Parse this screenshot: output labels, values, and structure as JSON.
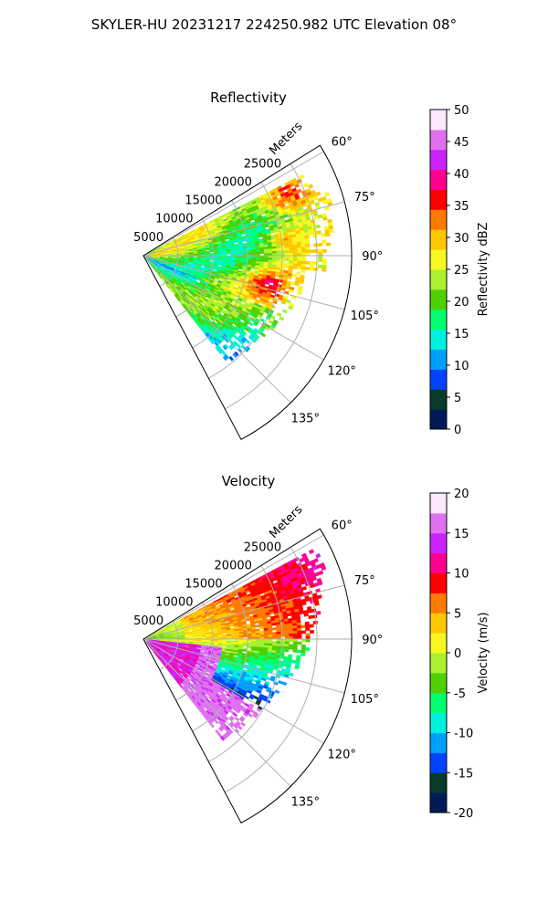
{
  "figure": {
    "title": "SKYLER-HU  20231217  224250.982 UTC Elevation 08°"
  },
  "chart_data": [
    {
      "type": "heatmap",
      "subtype": "polar-sector (PPI)",
      "title": "Reflectivity",
      "range_label": "Meters",
      "range_ticks": [
        5000,
        10000,
        15000,
        20000,
        25000
      ],
      "range_max": 30000,
      "azimuth_ticks": [
        "60°",
        "75°",
        "90°",
        "105°",
        "120°",
        "135°"
      ],
      "azimuth_tick_values": [
        60,
        75,
        90,
        105,
        120,
        135
      ],
      "azimuth_range": [
        58,
        152
      ],
      "grid": true,
      "colorbar": {
        "label": "Reflectivity dBZ",
        "min": 0,
        "max": 50,
        "ticks": [
          0,
          5,
          10,
          15,
          20,
          25,
          30,
          35,
          40,
          45,
          50
        ],
        "colormap": "HomeyerRainbow",
        "stops": [
          "#001a57",
          "#0a3a2a",
          "#0044ff",
          "#00a0ff",
          "#00f0e0",
          "#00ff70",
          "#50d000",
          "#a8f030",
          "#f8f820",
          "#ffc800",
          "#ff7a00",
          "#ff0000",
          "#ff0090",
          "#cc22ff",
          "#e070f0",
          "#ffe8ff"
        ]
      }
    },
    {
      "type": "heatmap",
      "subtype": "polar-sector (PPI)",
      "title": "Velocity",
      "range_label": "Meters",
      "range_ticks": [
        5000,
        10000,
        15000,
        20000,
        25000
      ],
      "range_max": 30000,
      "azimuth_ticks": [
        "60°",
        "75°",
        "90°",
        "105°",
        "120°",
        "135°"
      ],
      "azimuth_tick_values": [
        60,
        75,
        90,
        105,
        120,
        135
      ],
      "azimuth_range": [
        58,
        152
      ],
      "grid": true,
      "colorbar": {
        "label": "Velocity (m/s)",
        "min": -20,
        "max": 20,
        "ticks": [
          -20,
          -15,
          -10,
          -5,
          0,
          5,
          10,
          15,
          20
        ],
        "colormap": "HomeyerRainbow",
        "stops": [
          "#001a57",
          "#0a3a2a",
          "#0044ff",
          "#00a0ff",
          "#00f0e0",
          "#00ff70",
          "#50d000",
          "#a8f030",
          "#f8f820",
          "#ffc800",
          "#ff7a00",
          "#ff0000",
          "#ff0090",
          "#cc22ff",
          "#e070f0",
          "#ffe8ff"
        ]
      }
    }
  ]
}
